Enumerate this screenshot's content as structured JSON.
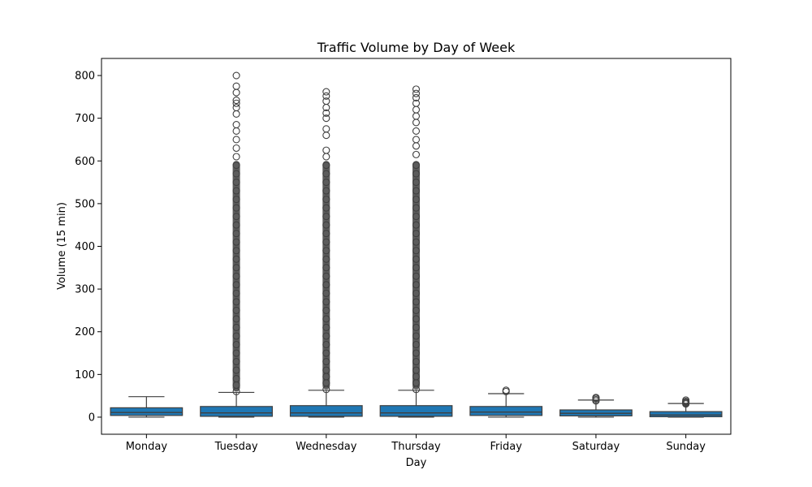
{
  "chart_data": {
    "type": "box",
    "title": "Traffic Volume by Day of Week",
    "xlabel": "Day",
    "ylabel": "Volume (15 min)",
    "categories": [
      "Monday",
      "Tuesday",
      "Wednesday",
      "Thursday",
      "Friday",
      "Saturday",
      "Sunday"
    ],
    "ylim": [
      -40,
      840
    ],
    "yticks": [
      0,
      100,
      200,
      300,
      400,
      500,
      600,
      700,
      800
    ],
    "grid": false,
    "box_color": "#1f77b4",
    "line_color": "#3f3f3f",
    "boxes": [
      {
        "name": "Monday",
        "whisker_low": 0,
        "q1": 4,
        "median": 11,
        "q3": 22,
        "whisker_high": 48,
        "outliers": []
      },
      {
        "name": "Tuesday",
        "whisker_low": 0,
        "q1": 2,
        "median": 10,
        "q3": 25,
        "whisker_high": 58,
        "outliers": [
          60,
          75,
          90,
          110,
          130,
          150,
          170,
          190,
          210,
          230,
          250,
          270,
          290,
          310,
          330,
          350,
          370,
          390,
          410,
          430,
          450,
          470,
          490,
          510,
          530,
          550,
          570,
          590,
          610,
          630,
          650,
          670,
          685,
          710,
          725,
          735,
          742,
          760,
          775,
          800
        ]
      },
      {
        "name": "Wednesday",
        "whisker_low": 0,
        "q1": 2,
        "median": 10,
        "q3": 27,
        "whisker_high": 63,
        "outliers": [
          65,
          80,
          95,
          110,
          130,
          150,
          170,
          190,
          210,
          230,
          250,
          270,
          290,
          310,
          330,
          350,
          370,
          390,
          410,
          430,
          450,
          470,
          490,
          510,
          530,
          550,
          570,
          590,
          610,
          625,
          660,
          675,
          700,
          712,
          725,
          740,
          752,
          762
        ]
      },
      {
        "name": "Thursday",
        "whisker_low": 0,
        "q1": 2,
        "median": 10,
        "q3": 27,
        "whisker_high": 63,
        "outliers": [
          65,
          80,
          95,
          110,
          130,
          150,
          170,
          190,
          210,
          230,
          250,
          270,
          290,
          310,
          330,
          350,
          370,
          390,
          410,
          430,
          450,
          470,
          490,
          510,
          530,
          550,
          570,
          590,
          615,
          635,
          650,
          670,
          690,
          705,
          720,
          735,
          748,
          758,
          768
        ]
      },
      {
        "name": "Friday",
        "whisker_low": 0,
        "q1": 4,
        "median": 12,
        "q3": 25,
        "whisker_high": 55,
        "outliers": [
          60,
          63
        ]
      },
      {
        "name": "Saturday",
        "whisker_low": 0,
        "q1": 3,
        "median": 9,
        "q3": 17,
        "whisker_high": 40,
        "outliers": [
          38,
          41,
          44,
          46
        ]
      },
      {
        "name": "Sunday",
        "whisker_low": 0,
        "q1": 1,
        "median": 5,
        "q3": 13,
        "whisker_high": 32,
        "outliers": [
          31,
          33,
          35,
          37,
          40
        ]
      }
    ]
  }
}
